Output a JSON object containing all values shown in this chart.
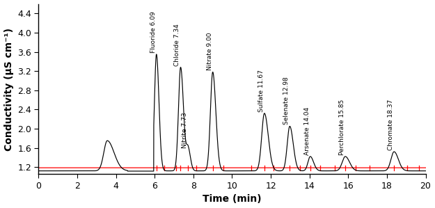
{
  "xlabel": "Time (min)",
  "ylabel": "Conductivity (μS cm⁻¹)",
  "xlim": [
    0.0,
    20.0
  ],
  "ylim": [
    1.05,
    4.6
  ],
  "yticks": [
    1.2,
    1.6,
    2.0,
    2.4,
    2.8,
    3.2,
    3.6,
    4.0,
    4.4
  ],
  "xticks": [
    0.0,
    2.0,
    4.0,
    6.0,
    8.0,
    10.0,
    12.0,
    14.0,
    16.0,
    18.0,
    20.0
  ],
  "background_color": "#ffffff",
  "black_line_color": "#000000",
  "red_line_color": "#ff0000",
  "peaks": [
    {
      "name": "Fluoride 6.09",
      "time": 6.09,
      "height": 3.55,
      "lw": 0.1,
      "rw": 0.13
    },
    {
      "name": "Chloride 7.34",
      "time": 7.34,
      "height": 3.28,
      "lw": 0.11,
      "rw": 0.15
    },
    {
      "name": "Nitrite 7.73",
      "time": 7.73,
      "height": 1.57,
      "lw": 0.09,
      "rw": 0.12
    },
    {
      "name": "Nitrate 9.00",
      "time": 9.0,
      "height": 3.18,
      "lw": 0.12,
      "rw": 0.16
    },
    {
      "name": "Sulfate 11.67",
      "time": 11.67,
      "height": 2.32,
      "lw": 0.14,
      "rw": 0.2
    },
    {
      "name": "Selenate 12.98",
      "time": 12.98,
      "height": 2.05,
      "lw": 0.13,
      "rw": 0.18
    },
    {
      "name": "Arsenate 14.04",
      "time": 14.04,
      "height": 1.42,
      "lw": 0.12,
      "rw": 0.17
    },
    {
      "name": "Perchlorate 15.85",
      "time": 15.85,
      "height": 1.42,
      "lw": 0.16,
      "rw": 0.22
    },
    {
      "name": "Chromate 18.37",
      "time": 18.37,
      "height": 1.52,
      "lw": 0.16,
      "rw": 0.22
    }
  ],
  "early_peak": {
    "time": 3.55,
    "height": 1.75,
    "lw": 0.18,
    "rw": 0.35
  },
  "baseline": 1.12,
  "red_baseline": 1.185,
  "red_ticks": [
    6.09,
    6.5,
    7.1,
    7.34,
    7.73,
    8.15,
    9.0,
    9.55,
    11.0,
    11.67,
    12.15,
    12.98,
    13.5,
    14.04,
    14.55,
    15.3,
    15.85,
    16.4,
    17.1,
    18.37,
    19.05,
    19.65
  ],
  "annotation_fontsize": 6.5,
  "label_fontsize": 10,
  "tick_fontsize": 9
}
